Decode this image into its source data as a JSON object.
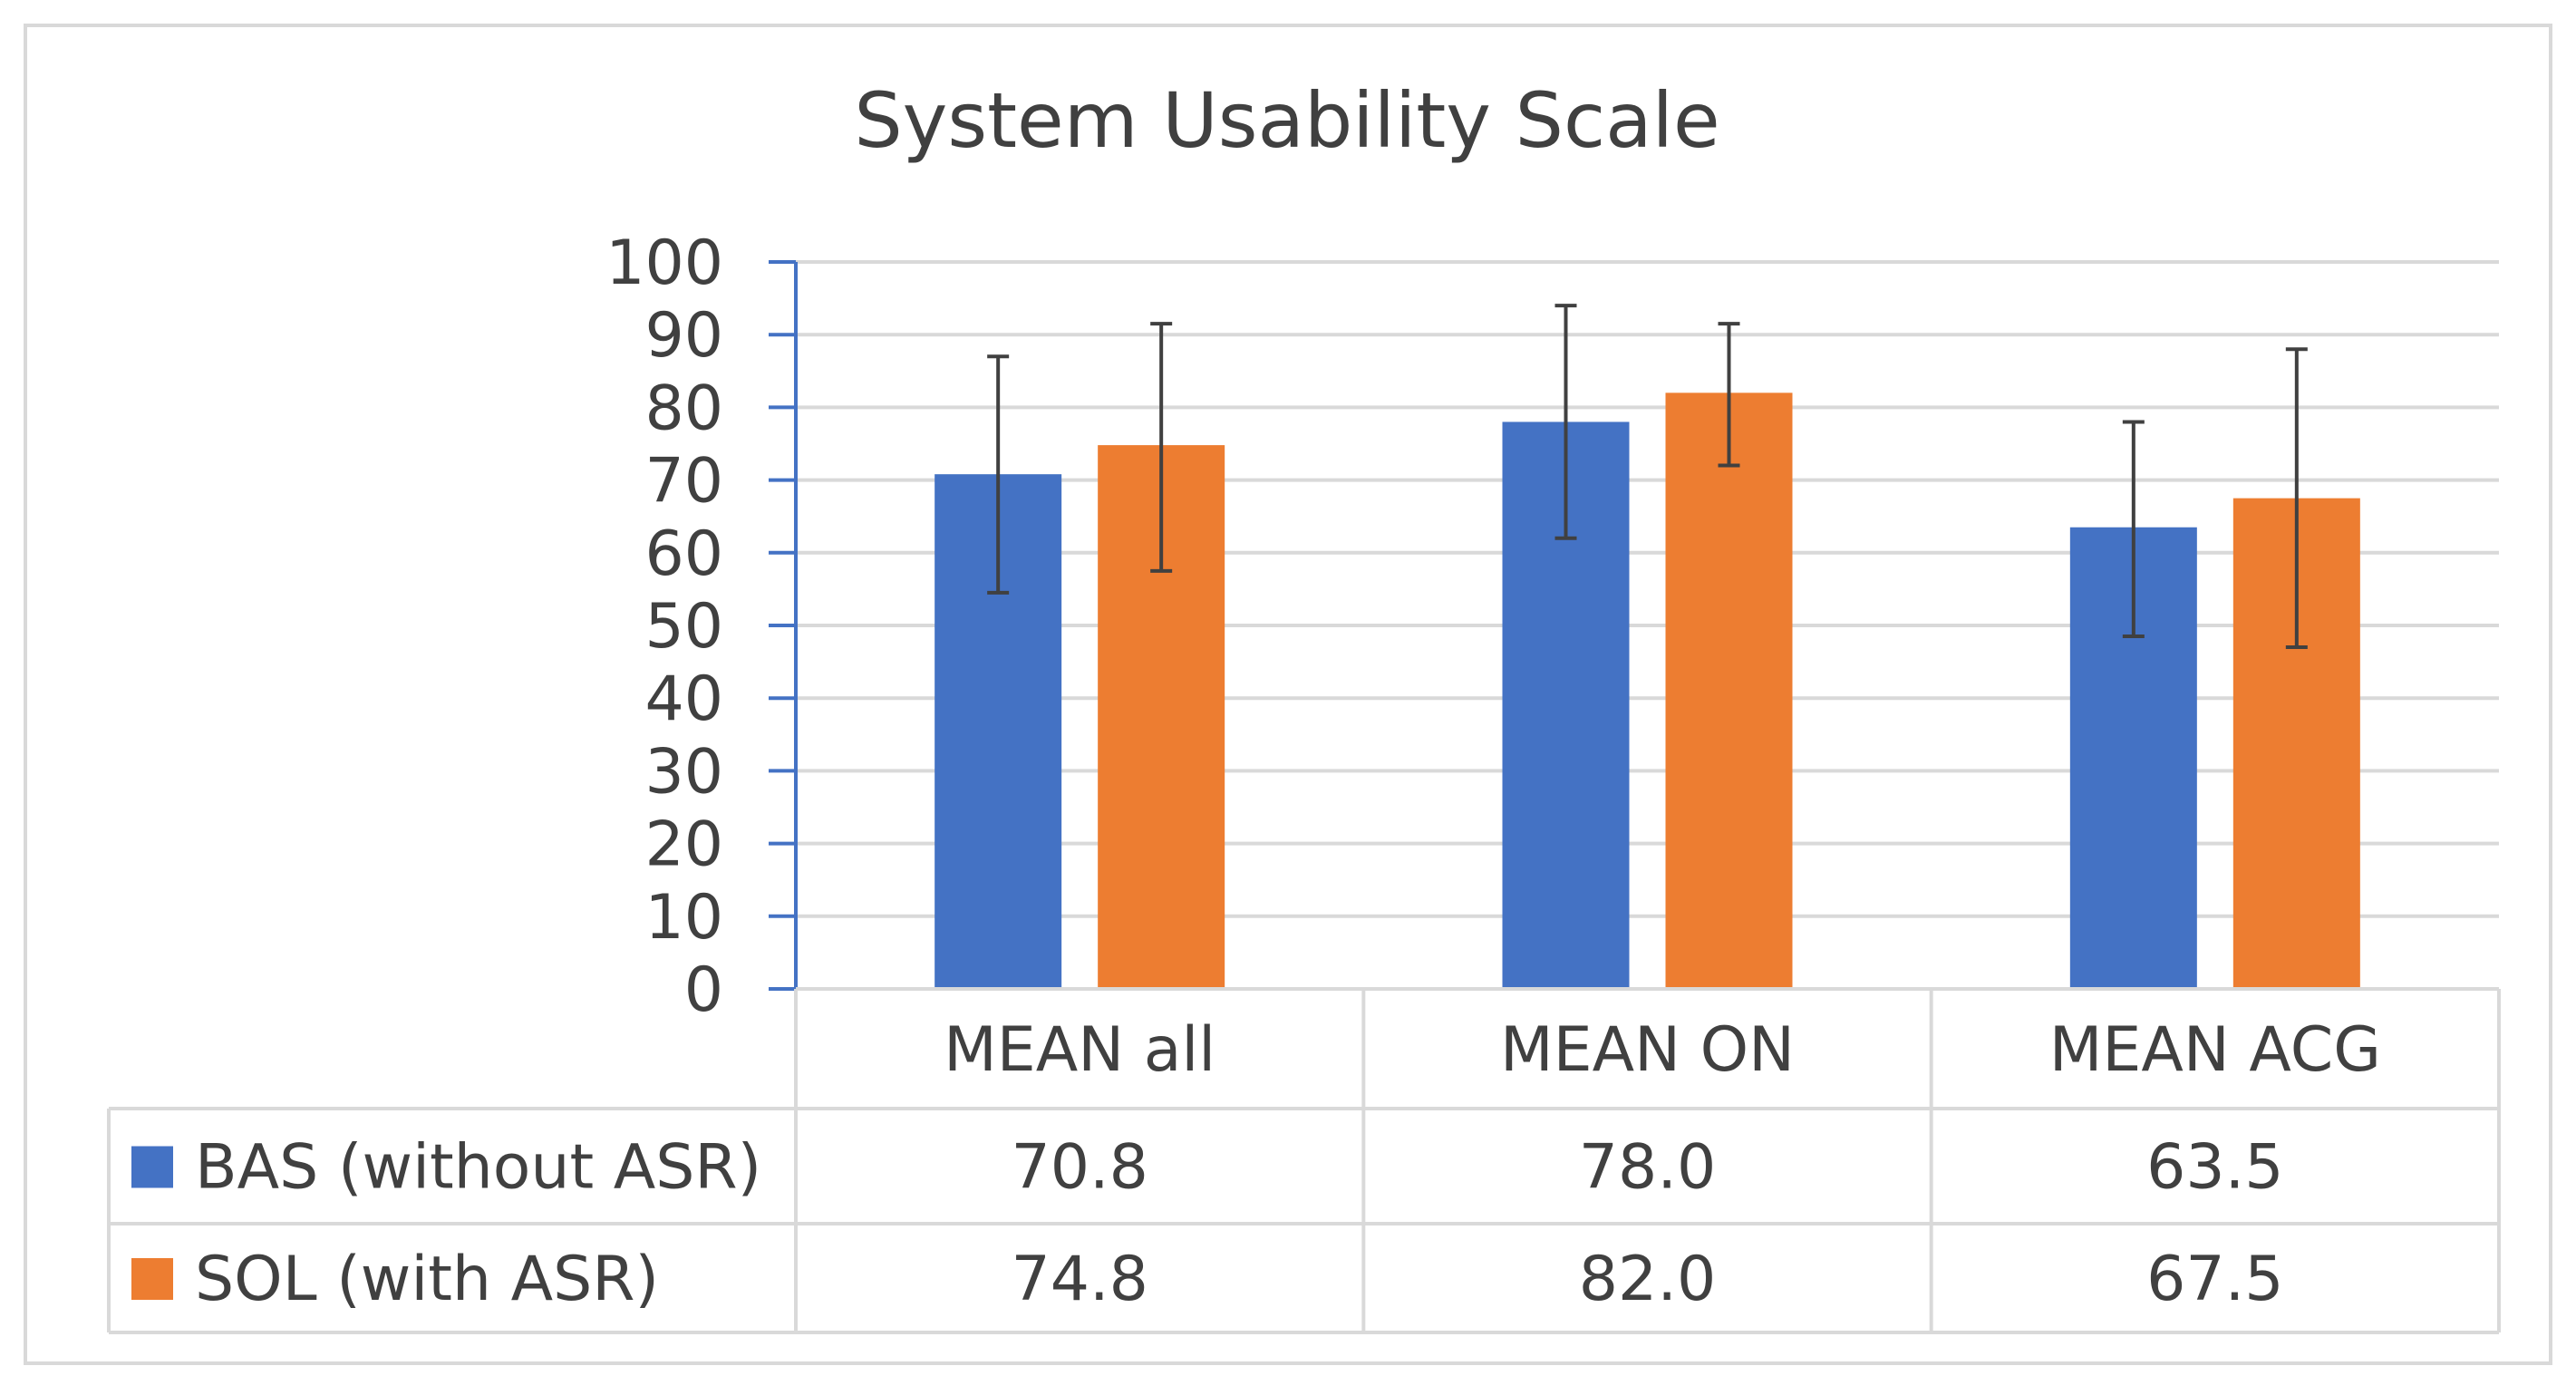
{
  "chart_data": {
    "type": "bar",
    "title": "System Usability Scale",
    "categories": [
      "MEAN all",
      "MEAN ON",
      "MEAN ACG"
    ],
    "series": [
      {
        "name": "BAS (without ASR)",
        "values": [
          70.8,
          78.0,
          63.5
        ],
        "value_labels": [
          "70.8",
          "78.0",
          "63.5"
        ],
        "error_low": [
          54.5,
          62.0,
          48.5
        ],
        "error_high": [
          87.0,
          94.0,
          78.0
        ],
        "color": "#4472C4"
      },
      {
        "name": "SOL (with ASR)",
        "values": [
          74.8,
          82.0,
          67.5
        ],
        "value_labels": [
          "74.8",
          "82.0",
          "67.5"
        ],
        "error_low": [
          57.5,
          72.0,
          47.0
        ],
        "error_high": [
          91.5,
          91.5,
          88.0
        ],
        "color": "#ED7D31"
      }
    ],
    "y_ticks": [
      "0",
      "10",
      "20",
      "30",
      "40",
      "50",
      "60",
      "70",
      "80",
      "90",
      "100"
    ],
    "ylim": [
      0,
      100
    ],
    "grid": true,
    "legend": "data table below chart",
    "colors": {
      "gridline": "#D9D9D9",
      "axis": "#4472C4",
      "text": "#404040",
      "frame": "#D9D9D9"
    }
  }
}
